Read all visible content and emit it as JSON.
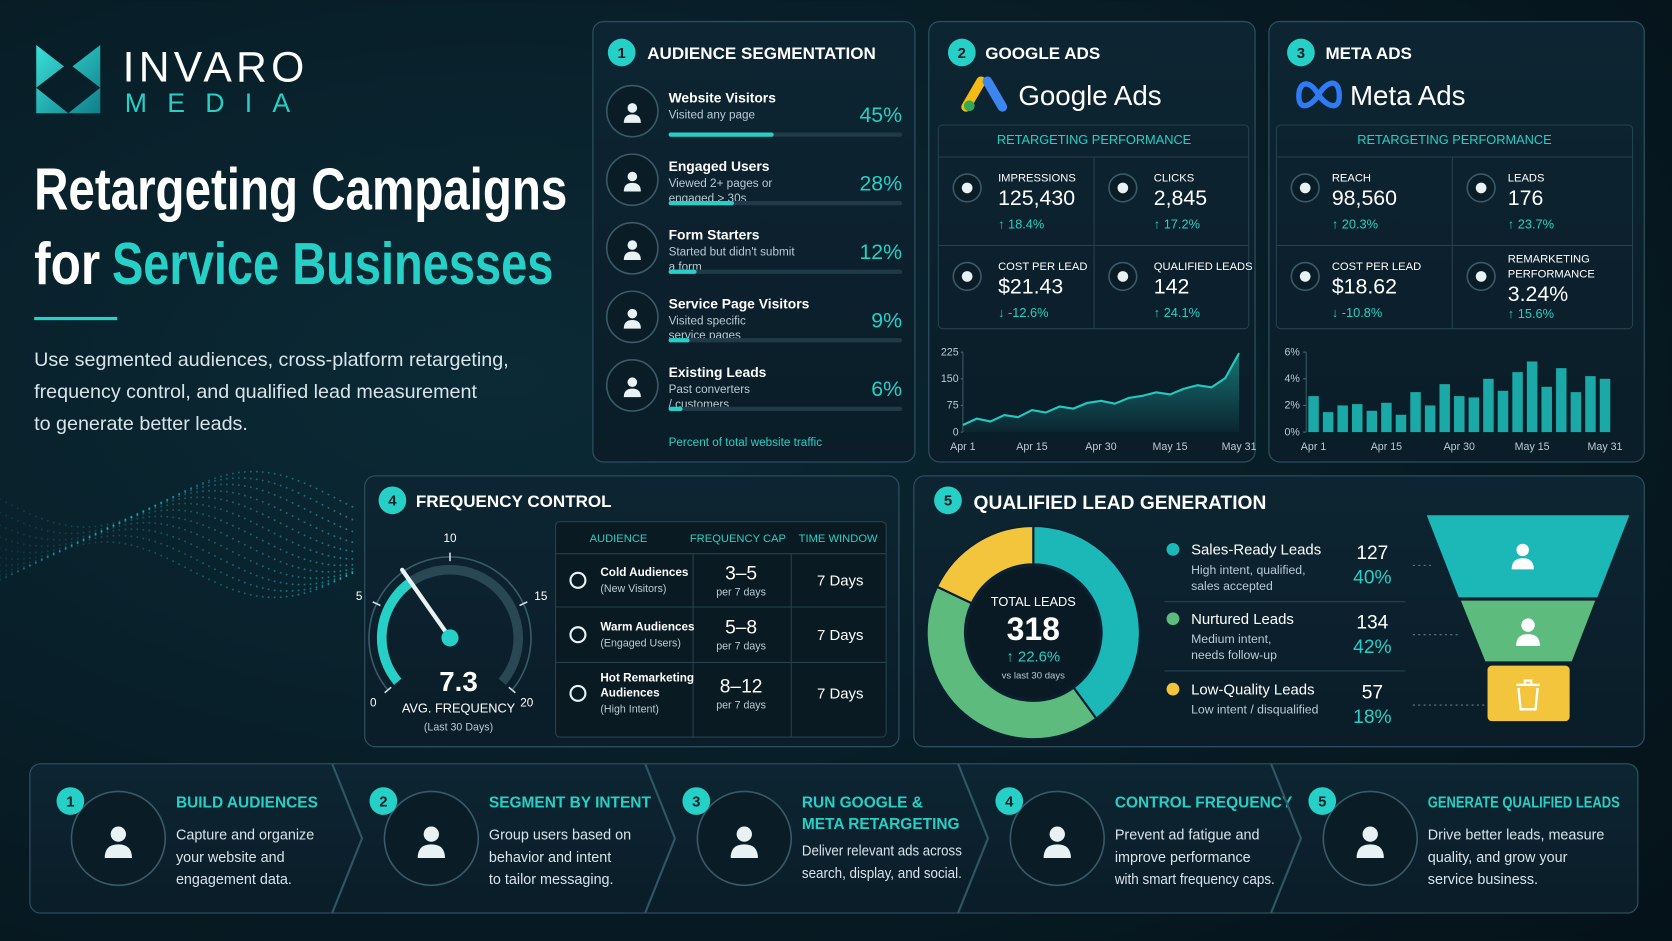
{
  "brand": {
    "name": "INVARO",
    "tagline": "MEDIA"
  },
  "hero": {
    "title_line1": "Retargeting Campaigns",
    "title_prefix": "for",
    "title_highlight": "Service Businesses",
    "description": [
      "Use segmented audiences, cross-platform retargeting,",
      "frequency control, and qualified lead measurement",
      "to generate better leads."
    ]
  },
  "audience_segmentation": {
    "number": "1",
    "title": "AUDIENCE SEGMENTATION",
    "xlim": [
      0,
      100
    ],
    "segments": [
      {
        "name": "Website Visitors",
        "description": [
          "Visited any page"
        ],
        "value": 45,
        "value_label": "45%"
      },
      {
        "name": "Engaged Users",
        "description": [
          "Viewed 2+ pages or",
          "engaged > 30s"
        ],
        "value": 28,
        "value_label": "28%"
      },
      {
        "name": "Form Starters",
        "description": [
          "Started but didn't submit",
          "a form"
        ],
        "value": 12,
        "value_label": "12%"
      },
      {
        "name": "Service Page Visitors",
        "description": [
          "Visited specific",
          "service pages"
        ],
        "value": 9,
        "value_label": "9%"
      },
      {
        "name": "Existing Leads",
        "description": [
          "Past converters",
          "/ customers"
        ],
        "value": 6,
        "value_label": "6%"
      }
    ],
    "footnote": "Percent of total website traffic"
  },
  "google_ads": {
    "number": "2",
    "title": "GOOGLE ADS",
    "logo_text": "Google Ads",
    "panel_title": "RETARGETING PERFORMANCE",
    "metrics": [
      {
        "label": [
          "IMPRESSIONS"
        ],
        "value": "125,430",
        "change": "↑ 18.4%"
      },
      {
        "label": [
          "CLICKS"
        ],
        "value": "2,845",
        "change": "↑ 17.2%"
      },
      {
        "label": [
          "COST PER LEAD"
        ],
        "value": "$21.43",
        "change": "↓ -12.6%"
      },
      {
        "label": [
          "QUALIFIED LEADS"
        ],
        "value": "142",
        "change": "↑ 24.1%"
      }
    ],
    "chart": {
      "type": "line",
      "color": "#22c9c0",
      "categories": [
        "Apr 1",
        null,
        null,
        null,
        null,
        "Apr 15",
        null,
        null,
        null,
        null,
        "Apr 30",
        null,
        null,
        null,
        null,
        "May 15",
        null,
        null,
        null,
        null,
        "May 31"
      ],
      "values": [
        20,
        38,
        30,
        48,
        42,
        62,
        55,
        72,
        66,
        82,
        88,
        80,
        96,
        102,
        112,
        106,
        122,
        132,
        126,
        152,
        222
      ],
      "ylim": [
        0,
        225
      ],
      "yticks": [
        0,
        75,
        150,
        225
      ]
    }
  },
  "meta_ads": {
    "number": "3",
    "title": "META ADS",
    "logo_text": "Meta Ads",
    "panel_title": "RETARGETING PERFORMANCE",
    "metrics": [
      {
        "label": [
          "REACH"
        ],
        "value": "98,560",
        "change": "↑ 20.3%"
      },
      {
        "label": [
          "LEADS"
        ],
        "value": "176",
        "change": "↑ 23.7%"
      },
      {
        "label": [
          "COST PER LEAD"
        ],
        "value": "$18.62",
        "change": "↓ -10.8%"
      },
      {
        "label": [
          "REMARKETING",
          "PERFORMANCE"
        ],
        "value": "3.24%",
        "change": "↑ 15.6%"
      }
    ],
    "chart": {
      "type": "bar",
      "color": "#1aa9a6",
      "categories": [
        "Apr 1",
        null,
        null,
        null,
        null,
        "Apr 15",
        null,
        null,
        null,
        null,
        "Apr 30",
        null,
        null,
        null,
        null,
        "May 15",
        null,
        null,
        null,
        null,
        "May 31"
      ],
      "values": [
        2.7,
        1.5,
        2.0,
        2.1,
        1.6,
        2.2,
        1.3,
        3.0,
        2.0,
        3.6,
        2.7,
        2.6,
        4.0,
        3.1,
        4.5,
        5.3,
        3.4,
        4.8,
        3.0,
        4.2,
        4.0
      ],
      "ylim": [
        0,
        6
      ],
      "yticks": [
        {
          "value": 0,
          "label": "0%"
        },
        {
          "value": 2,
          "label": "2%"
        },
        {
          "value": 4,
          "label": "4%"
        },
        {
          "value": 6,
          "label": "6%"
        }
      ]
    }
  },
  "frequency_control": {
    "number": "4",
    "title": "FREQUENCY CONTROL",
    "gauge": {
      "value": 7.3,
      "lim": [
        0,
        20
      ],
      "ticks": [
        0,
        5,
        10,
        15,
        20
      ],
      "label": "AVG. FREQUENCY",
      "sublabel": "(Last 30 Days)"
    },
    "table": {
      "headers": [
        "AUDIENCE",
        "FREQUENCY CAP",
        "TIME WINDOW"
      ],
      "rows": [
        {
          "audience": [
            "Cold Audiences"
          ],
          "note": "(New Visitors)",
          "cap": "3–5",
          "cap_note": "per 7 days",
          "window": "7 Days"
        },
        {
          "audience": [
            "Warm Audiences"
          ],
          "note": "(Engaged Users)",
          "cap": "5–8",
          "cap_note": "per 7 days",
          "window": "7 Days"
        },
        {
          "audience": [
            "Hot Remarketing",
            "Audiences"
          ],
          "note": "(High Intent)",
          "cap": "8–12",
          "cap_note": "per 7 days",
          "window": "7 Days"
        }
      ]
    }
  },
  "qualified_leads": {
    "number": "5",
    "title": "QUALIFIED LEAD GENERATION",
    "total_label": "TOTAL LEADS",
    "total": 318,
    "total_change": "↑ 22.6%",
    "total_change_note": "vs last 30 days",
    "segments": [
      {
        "name": "Sales-Ready Leads",
        "description": [
          "High intent, qualified,",
          "sales accepted"
        ],
        "value": 127,
        "percent": 40,
        "percent_label": "40%",
        "color": "#1cb7b7"
      },
      {
        "name": "Nurtured Leads",
        "description": [
          "Medium intent,",
          "needs follow-up"
        ],
        "value": 134,
        "percent": 42,
        "percent_label": "42%",
        "color": "#5cbb7d"
      },
      {
        "name": "Low-Quality Leads",
        "description": [
          "Low intent / disqualified"
        ],
        "value": 57,
        "percent": 18,
        "percent_label": "18%",
        "color": "#f2c53d"
      }
    ]
  },
  "workflow": {
    "steps": [
      {
        "number": "1",
        "title": [
          "BUILD AUDIENCES"
        ],
        "description": [
          "Capture and organize",
          "your website and",
          "engagement data."
        ]
      },
      {
        "number": "2",
        "title": [
          "SEGMENT BY INTENT"
        ],
        "description": [
          "Group users based on",
          "behavior and intent",
          "to tailor messaging."
        ]
      },
      {
        "number": "3",
        "title": [
          "RUN GOOGLE &",
          "META RETARGETING"
        ],
        "description": [
          "Deliver relevant ads across",
          "search, display, and social."
        ]
      },
      {
        "number": "4",
        "title": [
          "CONTROL FREQUENCY"
        ],
        "description": [
          "Prevent ad fatigue and",
          "improve performance",
          "with smart frequency caps."
        ]
      },
      {
        "number": "5",
        "title": [
          "GENERATE QUALIFIED LEADS"
        ],
        "description": [
          "Drive better leads, measure",
          "quality, and grow your",
          "service business."
        ]
      }
    ]
  }
}
